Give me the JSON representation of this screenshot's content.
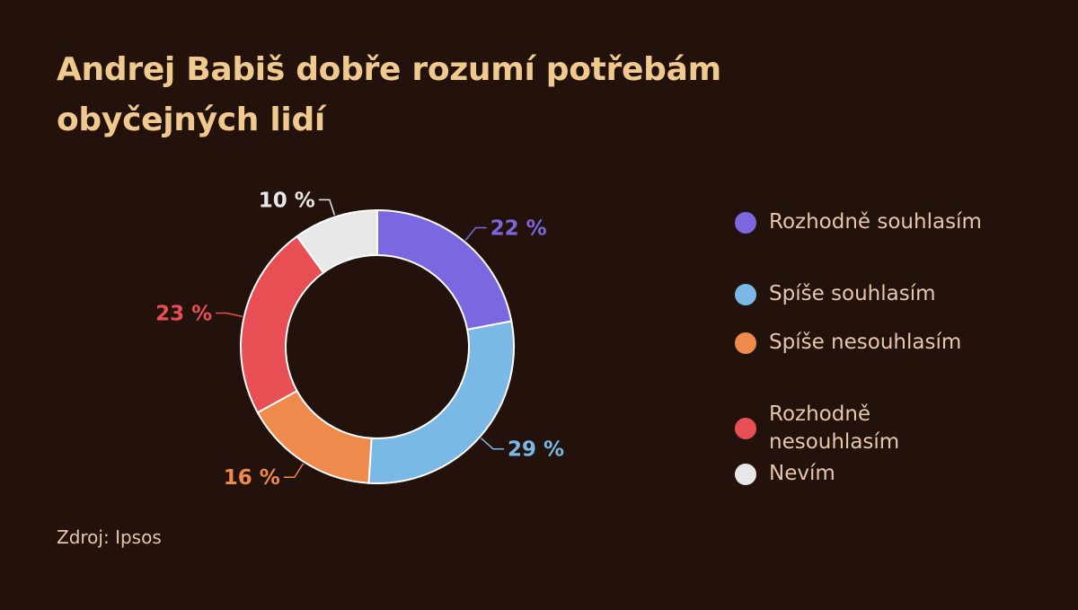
{
  "chart_data": {
    "type": "pie",
    "variant": "donut",
    "title": "Andrej Babiš dobře rozumí potřebám obyčejných lidí",
    "categories": [
      "Rozhodně souhlasím",
      "Spíše souhlasím",
      "Spíše nesouhlasím",
      "Rozhodně nesouhlasím",
      "Nevím"
    ],
    "values": [
      22,
      29,
      16,
      23,
      10
    ],
    "value_labels": [
      "22 %",
      "29 %",
      "16 %",
      "23 %",
      "10 %"
    ],
    "colors": [
      "#7b68e0",
      "#7ab8e6",
      "#ee8a4c",
      "#e84f54",
      "#e8e8e8"
    ],
    "legend_position": "right",
    "source": "Zdroj: Ipsos"
  },
  "background_color": "#22120b",
  "title_color": "#f0c98f",
  "text_color": "#e7c6a9"
}
